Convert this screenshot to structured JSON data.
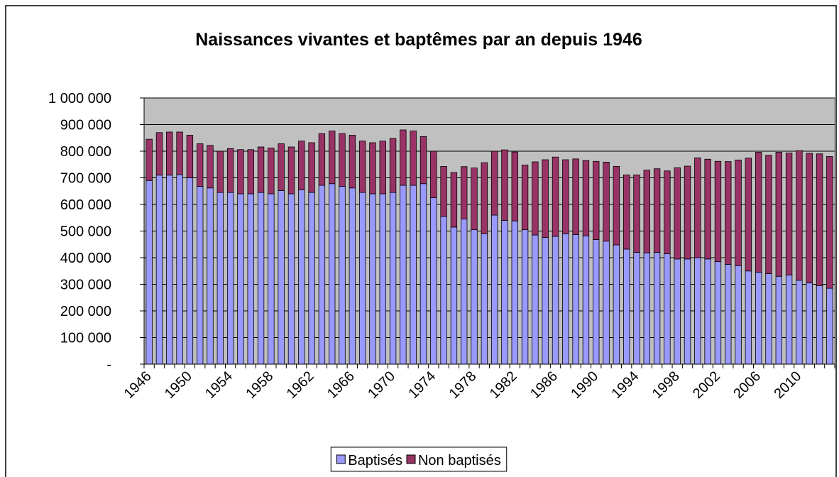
{
  "chart_data": {
    "type": "stacked_bar",
    "title": "Naissances vivantes et baptêmes par an depuis 1946",
    "categories": [
      "1946",
      null,
      null,
      null,
      "1950",
      null,
      null,
      null,
      "1954",
      null,
      null,
      null,
      "1958",
      null,
      null,
      null,
      "1962",
      null,
      null,
      null,
      "1966",
      null,
      null,
      null,
      "1970",
      null,
      null,
      null,
      "1974",
      null,
      null,
      null,
      "1978",
      null,
      null,
      null,
      "1982",
      null,
      null,
      null,
      "1986",
      null,
      null,
      null,
      "1990",
      null,
      null,
      null,
      "1994",
      null,
      null,
      null,
      "1998",
      null,
      null,
      null,
      "2002",
      null,
      null,
      null,
      "2006",
      null,
      null,
      null,
      "2010",
      null,
      null,
      null
    ],
    "series": [
      {
        "name": "Baptisés",
        "color": "#9999ff",
        "values": [
          690000,
          710000,
          710000,
          712000,
          700000,
          668000,
          662000,
          645000,
          645000,
          640000,
          640000,
          645000,
          640000,
          652000,
          640000,
          655000,
          645000,
          672000,
          678000,
          668000,
          662000,
          645000,
          640000,
          640000,
          645000,
          672000,
          672000,
          678000,
          625000,
          555000,
          515000,
          545000,
          505000,
          490000,
          560000,
          540000,
          538000,
          505000,
          485000,
          476000,
          480000,
          490000,
          487000,
          482000,
          468000,
          462000,
          448000,
          432000,
          420000,
          418000,
          420000,
          415000,
          395000,
          395000,
          400000,
          395000,
          385000,
          375000,
          370000,
          350000,
          345000,
          340000,
          330000,
          335000,
          315000,
          305000,
          295000,
          285000
        ]
      },
      {
        "name": "Non baptisés",
        "color": "#993366",
        "values": [
          155000,
          160000,
          162000,
          160000,
          160000,
          160000,
          160000,
          155000,
          165000,
          166000,
          166000,
          171000,
          172000,
          176000,
          176000,
          183000,
          187000,
          194000,
          198000,
          198000,
          198000,
          193000,
          192000,
          198000,
          203000,
          208000,
          204000,
          177000,
          175000,
          188000,
          205000,
          197000,
          232000,
          267000,
          240000,
          265000,
          259000,
          243000,
          275000,
          292000,
          298000,
          278000,
          284000,
          283000,
          294000,
          297000,
          295000,
          279000,
          291000,
          311000,
          314000,
          311000,
          343000,
          349000,
          375000,
          375000,
          377000,
          386000,
          397000,
          424000,
          451000,
          445000,
          466000,
          458000,
          487000,
          487000,
          495000,
          495000
        ]
      }
    ],
    "ylim": [
      0,
      1000000
    ],
    "yticks": [
      {
        "value": 0,
        "label": "-"
      },
      {
        "value": 100000,
        "label": "100 000"
      },
      {
        "value": 200000,
        "label": "200 000"
      },
      {
        "value": 300000,
        "label": "300 000"
      },
      {
        "value": 400000,
        "label": "400 000"
      },
      {
        "value": 500000,
        "label": "500 000"
      },
      {
        "value": 600000,
        "label": "600 000"
      },
      {
        "value": 700000,
        "label": "700 000"
      },
      {
        "value": 800000,
        "label": "800 000"
      },
      {
        "value": 900000,
        "label": "900 000"
      },
      {
        "value": 1000000,
        "label": "1 000 000"
      }
    ],
    "grid": true,
    "legend": "bottom"
  }
}
